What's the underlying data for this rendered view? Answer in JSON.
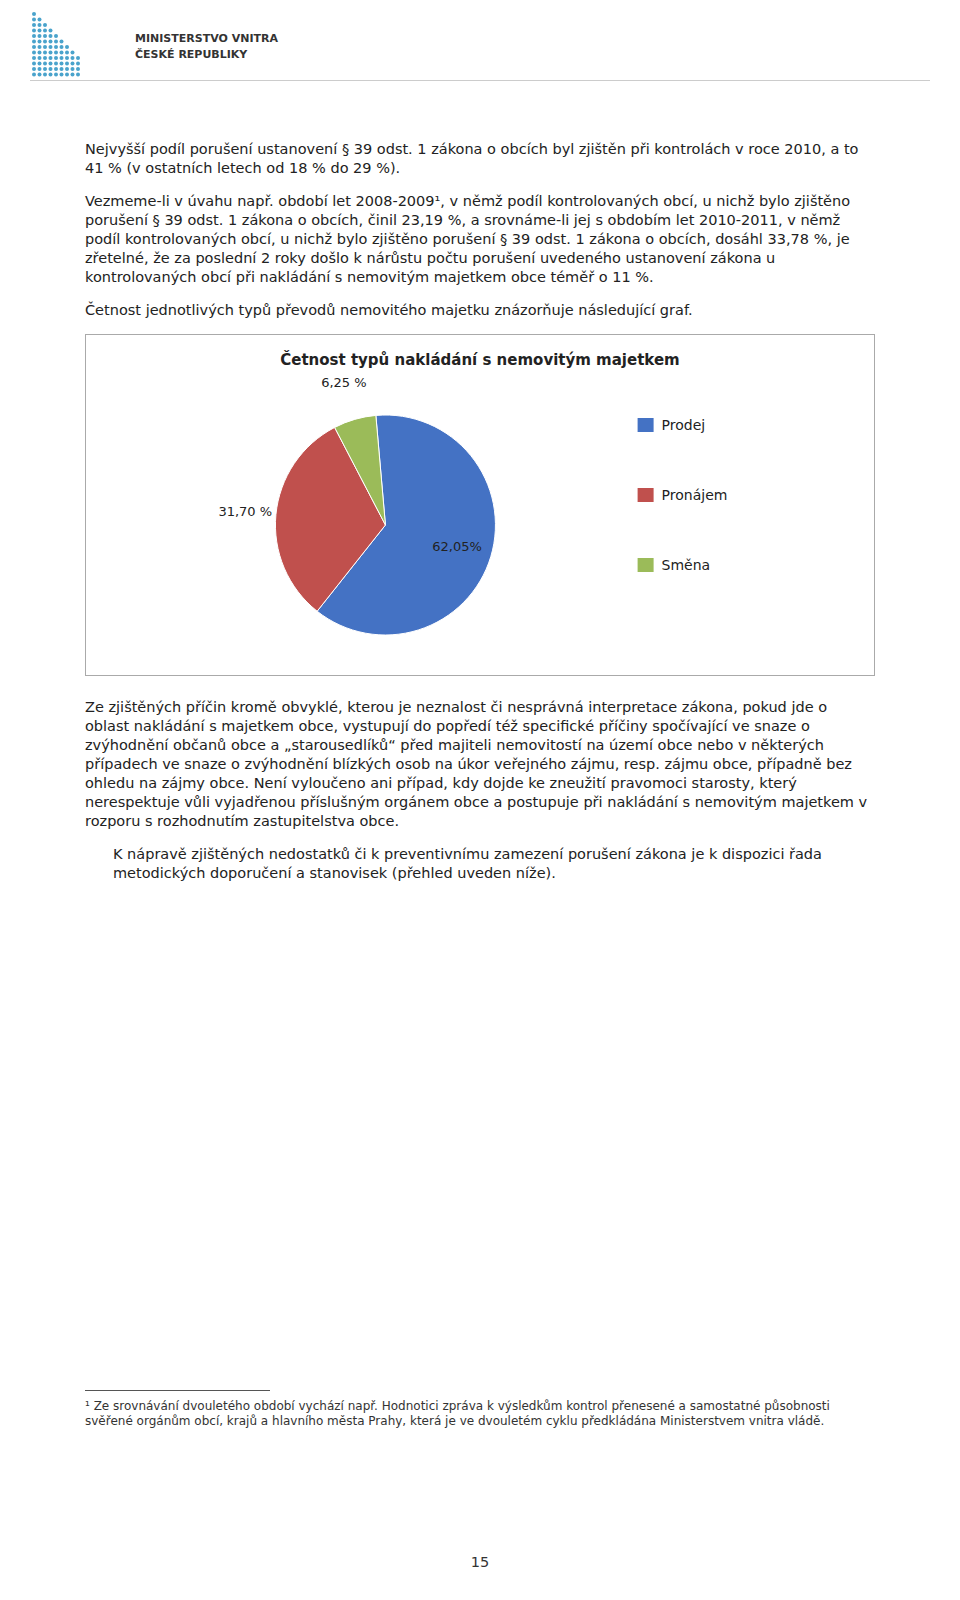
{
  "page_bg": "#ffffff",
  "header_logo_color": "#4aa3cc",
  "header_text1": "MINISTERSTVO VNITRA",
  "header_text2": "ČESKÉ REPUBLIKY",
  "para1": "Nejvyšší podíl porušení ustanovení § 39 odst. 1 zákona o obcích byl zjištěn při kontrolách v roce 2010, a to 41 % (v ostatních letech od 18 % do 29 %).",
  "para2": "Vezmeme-li v úvahu např. období let 2008-2009¹, v němž podíl kontrolovaných obcí, u nichž bylo zjištěno porušení § 39 odst. 1 zákona o obcích, činil 23,19 %, a srovnáme-li jej s obdobím let 2010-2011, v němž podíl kontrolovaných obcí, u nichž bylo zjištěno porušení § 39 odst. 1 zákona o obcích, dosáhl 33,78 %, je zřetelné, že za poslední 2 roky došlo k nárůstu počtu porušení uvedeného ustanovení zákona u kontrolovaných obcí při nakládání s nemovitým majetkem obce téměř o 11 %.",
  "para3": "Četnost jednotlivých typů převodů nemovitého majetku znázorňuje následující graf.",
  "chart_data": {
    "type": "pie",
    "title": "Četnost typů nakládání s nemovitým majetkem",
    "categories": [
      "Prodej",
      "Pronájem",
      "Směna"
    ],
    "values": [
      62.05,
      31.7,
      6.25
    ],
    "value_labels": [
      "62,05%",
      "31,70 %",
      "6,25 %"
    ],
    "colors": [
      "#4472c4",
      "#c0504d",
      "#9bbb59"
    ],
    "data_labels": true,
    "legend": "right"
  },
  "para4": "Ze zjištěných příčin kromě obvyklé, kterou je neznalost či nesprávná interpretace zákona, pokud jde o oblast nakládání s majetkem obce, vystupují do popředí též specifické příčiny spočívající ve snaze o zvýhodnění občanů obce a „starousedlíků“ před majiteli nemovitostí na území obce nebo v některých případech ve snaze o zvýhodnění blízkých osob na úkor veřejného zájmu, resp. zájmu obce, případně bez ohledu na zájmy obce. Není vyloučeno ani případ, kdy dojde ke zneužití pravomoci starosty, který nerespektuje vůli vyjadřenou příslušným orgánem obce a postupuje při nakládání s nemovitým majetkem v rozporu s rozhodnutím zastupitelstva obce.",
  "para5": "K nápravě zjištěných nedostatků či k preventivnímu zamezení porušení zákona je k dispozici řada metodických doporučení a stanovisek (přehled uveden níže).",
  "footnote_text": "¹ Ze srovnávání dvouletého období vychází např. Hodnotici zpráva k výsledkům kontrol přenesené a samostatné působnosti svěřené orgánům obcí, krajů a hlavního města Prahy, která je ve dvouletém cyklu předkládána Ministerstvem vnitra vládě.",
  "page_number": "15"
}
